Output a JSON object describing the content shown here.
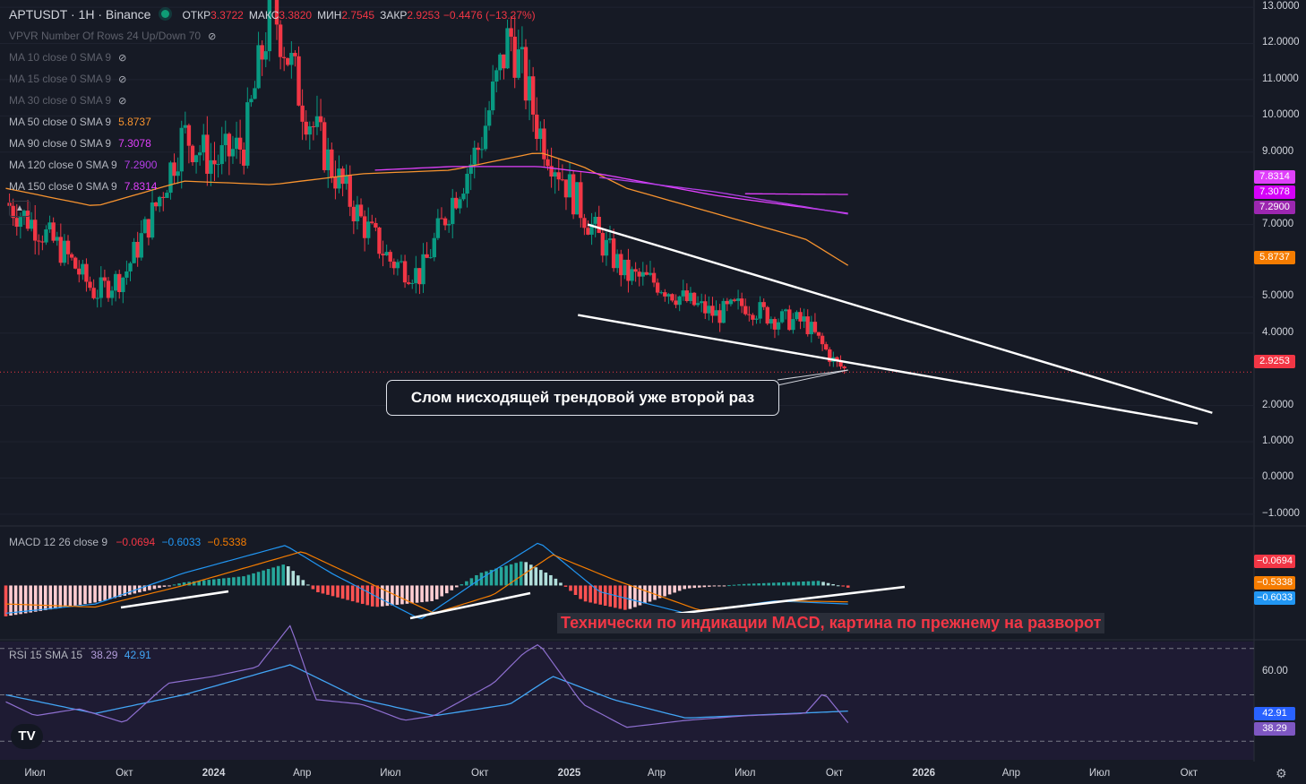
{
  "header": {
    "symbol": "APTUSDT · 1H · Binance",
    "open_label": "ОТКР",
    "open": "3.3722",
    "high_label": "МАКС",
    "high": "3.3820",
    "low_label": "МИН",
    "low": "2.7545",
    "close_label": "ЗАКР",
    "close": "2.9253",
    "change": "−0.4476 (−13.27%)"
  },
  "indicators": [
    {
      "label": "VPVR Number Of Rows 24 Up/Down 70",
      "value": "",
      "hidden": true,
      "color": "#5d606b"
    },
    {
      "label": "MA 10 close 0 SMA 9",
      "value": "",
      "hidden": true,
      "color": "#5d606b"
    },
    {
      "label": "MA 15 close 0 SMA 9",
      "value": "",
      "hidden": true,
      "color": "#5d606b"
    },
    {
      "label": "MA 30 close 0 SMA 9",
      "value": "",
      "hidden": true,
      "color": "#5d606b"
    },
    {
      "label": "MA 50 close 0 SMA 9",
      "value": "5.8737",
      "hidden": false,
      "color": "#f7932f"
    },
    {
      "label": "MA 90 close 0 SMA 9",
      "value": "7.3078",
      "hidden": false,
      "color": "#e040fb"
    },
    {
      "label": "MA 120 close 0 SMA 9",
      "value": "7.2900",
      "hidden": false,
      "color": "#b33ee6"
    },
    {
      "label": "MA 150 close 0 SMA 9",
      "value": "7.8314",
      "hidden": false,
      "color": "#e040fb"
    }
  ],
  "macd": {
    "label": "MACD 12 26 close 9",
    "hist": "−0.0694",
    "macd": "−0.6033",
    "signal": "−0.5338"
  },
  "rsi": {
    "label": "RSI 15 SMA 15",
    "rsi": "38.29",
    "sma": "42.91"
  },
  "annotations": {
    "callout": "Слом нисходящей трендовой уже второй раз",
    "macd_note": "Технически по индикации MACD, картина по прежнему на разворот"
  },
  "price_badges": [
    {
      "value": "7.8314",
      "color": "#e040fb"
    },
    {
      "value": "7.3078",
      "color": "#d500f9"
    },
    {
      "value": "7.2900",
      "color": "#9c27b0"
    },
    {
      "value": "5.8737",
      "color": "#f57c00"
    },
    {
      "value": "2.9253",
      "color": "#f23645"
    }
  ],
  "macd_badges": [
    {
      "value": "−0.0694",
      "color": "#f23645"
    },
    {
      "value": "−0.5338",
      "color": "#f57c00"
    },
    {
      "value": "−0.6033",
      "color": "#2196f3"
    }
  ],
  "rsi_badges": [
    {
      "value": "42.91",
      "color": "#2962ff"
    },
    {
      "value": "38.29",
      "color": "#7e57c2"
    }
  ],
  "chart_data": {
    "type": "candlestick",
    "colors": {
      "up": "#089981",
      "down": "#f23645",
      "background": "#161a25"
    },
    "y_axis_ticks": [
      "13.0000",
      "12.0000",
      "11.0000",
      "10.0000",
      "9.0000",
      "7.0000",
      "5.0000",
      "4.0000",
      "2.0000",
      "1.0000",
      "0.0000",
      "−1.0000"
    ],
    "ylim": [
      -1.3,
      13.2
    ],
    "x_axis_ticks": [
      "Июл",
      "Окт",
      "2024",
      "Апр",
      "Июл",
      "Окт",
      "2025",
      "Апр",
      "Июл",
      "Окт",
      "2026",
      "Апр",
      "Июл",
      "Окт"
    ],
    "x_range": [
      "2023-05-26",
      "2026-12-07"
    ],
    "last_price": 2.9253,
    "price_series": {
      "name": "APTUSDT",
      "x": [
        "2023-06-01",
        "2023-07-01",
        "2023-08-01",
        "2023-09-01",
        "2023-10-01",
        "2023-11-01",
        "2023-12-01",
        "2024-01-01",
        "2024-02-01",
        "2024-03-01",
        "2024-04-01",
        "2024-05-01",
        "2024-06-01",
        "2024-07-01",
        "2024-08-01",
        "2024-09-01",
        "2024-10-01",
        "2024-11-01",
        "2024-12-01",
        "2025-01-01",
        "2025-02-01",
        "2025-03-01",
        "2025-04-01",
        "2025-05-01",
        "2025-06-01",
        "2025-07-01",
        "2025-08-01",
        "2025-09-01",
        "2025-10-01",
        "2025-10-15"
      ],
      "values": [
        7.6,
        7.0,
        6.2,
        5.1,
        5.6,
        7.4,
        9.5,
        8.7,
        9.2,
        13.1,
        10.4,
        8.6,
        7.1,
        6.0,
        5.6,
        7.6,
        9.2,
        12.3,
        9.6,
        8.0,
        6.6,
        5.6,
        5.4,
        4.9,
        4.5,
        4.8,
        4.4,
        4.3,
        3.2,
        2.93
      ]
    },
    "moving_averages": [
      {
        "name": "MA 50",
        "color": "#f7932f",
        "x": [
          "2023-06-01",
          "2023-09-01",
          "2023-12-01",
          "2024-03-01",
          "2024-06-01",
          "2024-09-01",
          "2024-12-01",
          "2025-01-15",
          "2025-03-01",
          "2025-06-01",
          "2025-09-01",
          "2025-10-15"
        ],
        "values": [
          8.0,
          7.5,
          8.2,
          8.1,
          8.4,
          8.5,
          9.0,
          8.6,
          8.0,
          7.3,
          6.6,
          5.87
        ]
      },
      {
        "name": "MA 90",
        "color": "#e040fb",
        "x": [
          "2024-06-15",
          "2024-09-01",
          "2024-12-01",
          "2025-02-01",
          "2025-06-01",
          "2025-10-15"
        ],
        "values": [
          8.5,
          8.6,
          8.6,
          8.4,
          7.8,
          7.31
        ]
      },
      {
        "name": "MA 120",
        "color": "#b33ee6",
        "x": [
          "2025-02-01",
          "2025-06-01",
          "2025-10-15"
        ],
        "values": [
          8.3,
          7.9,
          7.29
        ]
      },
      {
        "name": "MA 150",
        "color": "#e040fb",
        "x": [
          "2025-07-01",
          "2025-10-15"
        ],
        "values": [
          7.85,
          7.83
        ]
      }
    ],
    "trendlines": [
      {
        "x": [
          "2025-01-20",
          "2026-10-25"
        ],
        "values": [
          7.0,
          1.8
        ]
      },
      {
        "x": [
          "2025-01-10",
          "2026-10-10"
        ],
        "values": [
          4.5,
          1.5
        ]
      }
    ],
    "macd_histogram": {
      "x": [
        "2023-06-01",
        "2023-09-01",
        "2023-12-01",
        "2024-02-01",
        "2024-03-15",
        "2024-04-15",
        "2024-06-15",
        "2024-08-15",
        "2024-10-01",
        "2024-11-15",
        "2024-12-15",
        "2025-01-15",
        "2025-03-01",
        "2025-05-01",
        "2025-07-01",
        "2025-09-15",
        "2025-10-15"
      ],
      "values": [
        -1.0,
        -0.55,
        0.1,
        0.3,
        0.7,
        -0.2,
        -0.7,
        -0.5,
        0.4,
        0.8,
        0.3,
        -0.5,
        -0.8,
        -0.1,
        0.05,
        0.15,
        -0.07
      ]
    },
    "macd_line": {
      "x": [
        "2023-06-01",
        "2023-09-01",
        "2023-12-01",
        "2024-03-15",
        "2024-05-01",
        "2024-08-01",
        "2024-10-01",
        "2024-12-01",
        "2025-02-01",
        "2025-05-01",
        "2025-08-01",
        "2025-10-15"
      ],
      "values": [
        -0.9,
        -0.6,
        0.4,
        1.3,
        0.4,
        -1.1,
        0.2,
        1.4,
        -0.2,
        -0.9,
        -0.5,
        -0.6
      ]
    },
    "macd_signal": {
      "x": [
        "2023-06-01",
        "2023-09-01",
        "2023-12-01",
        "2024-04-01",
        "2024-06-01",
        "2024-08-15",
        "2024-10-15",
        "2024-12-15",
        "2025-02-15",
        "2025-05-15",
        "2025-08-15",
        "2025-10-15"
      ],
      "values": [
        -0.6,
        -0.7,
        0.0,
        1.1,
        0.2,
        -0.9,
        -0.3,
        1.0,
        0.2,
        -0.8,
        -0.5,
        -0.53
      ]
    },
    "macd_ylim": [
      -1.7,
      1.9
    ],
    "rsi_line": {
      "x": [
        "2023-06-01",
        "2023-07-01",
        "2023-08-15",
        "2023-10-01",
        "2023-11-15",
        "2024-01-01",
        "2024-02-15",
        "2024-03-20",
        "2024-04-15",
        "2024-06-01",
        "2024-07-15",
        "2024-08-15",
        "2024-10-15",
        "2024-11-15",
        "2024-12-01",
        "2025-01-15",
        "2025-03-01",
        "2025-05-01",
        "2025-07-01",
        "2025-09-01",
        "2025-09-20",
        "2025-10-15"
      ],
      "values": [
        47,
        41,
        44,
        38,
        55,
        58,
        62,
        80,
        48,
        46,
        39,
        41,
        55,
        68,
        72,
        46,
        36,
        39,
        41,
        42,
        51,
        38
      ]
    },
    "rsi_sma": {
      "x": [
        "2023-06-01",
        "2023-09-01",
        "2023-12-01",
        "2024-03-20",
        "2024-06-01",
        "2024-08-15",
        "2024-11-01",
        "2024-12-15",
        "2025-02-15",
        "2025-05-01",
        "2025-10-15"
      ],
      "values": [
        50,
        42,
        50,
        63,
        48,
        41,
        46,
        58,
        48,
        40,
        43
      ]
    },
    "rsi_ylim": [
      22,
      73
    ],
    "rsi_levels": [
      70,
      50,
      30
    ]
  }
}
